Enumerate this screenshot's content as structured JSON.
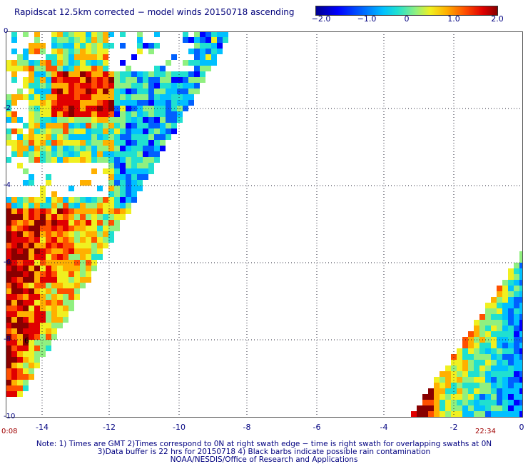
{
  "title": "Rapidscat 12.5km corrected − model winds 20150718 ascending",
  "colorbar": {
    "ticks": [
      {
        "label": "−2.0",
        "value": -2.0
      },
      {
        "label": "−1.0",
        "value": -1.0
      },
      {
        "label": "0",
        "value": 0
      },
      {
        "label": "1.0",
        "value": 1.0
      },
      {
        "label": "2.0",
        "value": 2.0
      }
    ],
    "colors": [
      "#000090",
      "#0000ff",
      "#0060ff",
      "#00c0ff",
      "#20e0d0",
      "#90f080",
      "#f0f020",
      "#ffb000",
      "#ff5000",
      "#e00000",
      "#880000"
    ]
  },
  "axes": {
    "x_ticks": [
      "-14",
      "-12",
      "-10",
      "-8",
      "-6",
      "-4",
      "-2",
      "0"
    ],
    "y_ticks": [
      "0",
      "-2",
      "-4",
      "-6",
      "-8",
      "-10"
    ],
    "xlim": [
      -14.8,
      0
    ],
    "ylim": [
      -10,
      0
    ],
    "grid": true
  },
  "time_left": "0:08",
  "time_right": "22:34",
  "notes": [
    "Note: 1) Times are GMT 2)Times correspond to 0N at right swath edge − time is right swath for overlapping swaths at 0N",
    "3)Data buffer is 22 hrs for 20150718 4) Black barbs indicate possible rain contamination",
    "NOAA/NESDIS/Office of Research and Applications"
  ]
}
